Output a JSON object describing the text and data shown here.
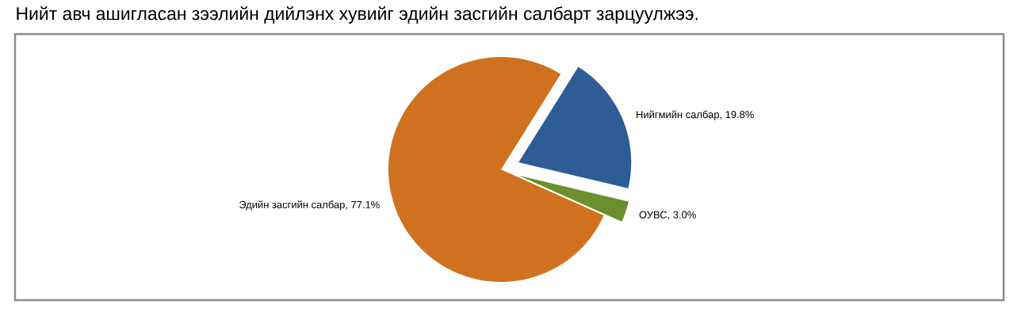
{
  "chart_data": {
    "type": "pie",
    "title": "Нийт авч ашигласан зээлийн дийлэнх хувийг эдийн засгийн салбарт зарцуулжээ.",
    "categories": [
      "Нийгмийн салбар",
      "ОУВС",
      "Эдийн засгийн салбар"
    ],
    "values": [
      19.8,
      3.0,
      77.1
    ],
    "colors": [
      "#2e5d96",
      "#6b8f2c",
      "#d0711f"
    ],
    "value_labels": [
      ", 19.8%",
      ", 3.0%",
      ", 77.1%"
    ]
  }
}
